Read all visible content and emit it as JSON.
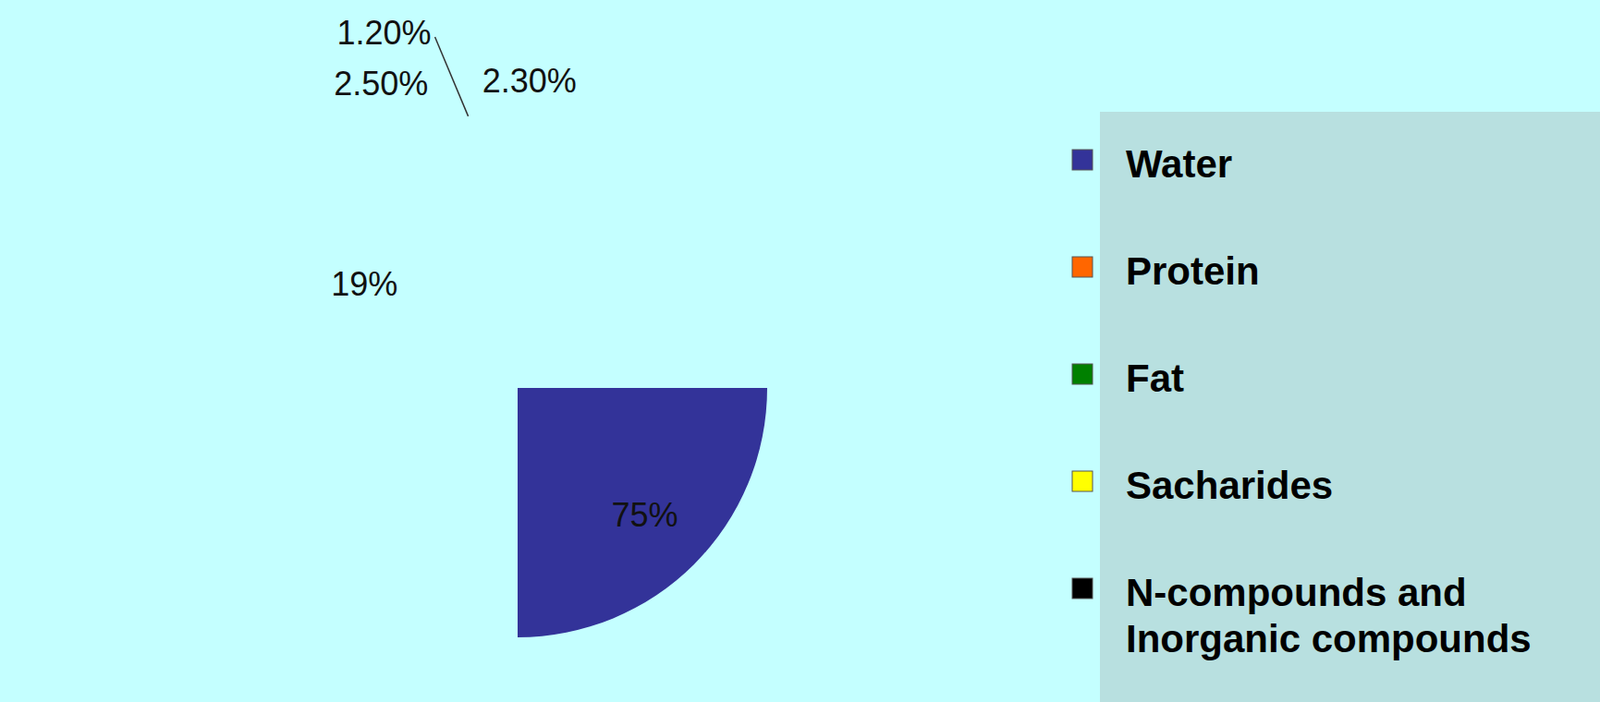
{
  "chart_data": {
    "type": "pie",
    "categories": [
      "Water",
      "Protein",
      "Fat",
      "Sacharides",
      "N-compounds and Inorganic compounds"
    ],
    "values": [
      75,
      19,
      2.5,
      1.2,
      2.3
    ],
    "value_labels": [
      "75%",
      "19%",
      "2.50%",
      "1.20%",
      "2.30%"
    ],
    "colors": [
      "#333399",
      "#ff6600",
      "#008000",
      "#ffff00",
      "#000000"
    ],
    "data_labels": true,
    "legend": "right"
  }
}
